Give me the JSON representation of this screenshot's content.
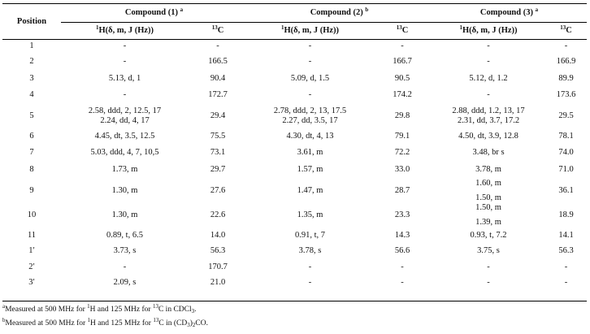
{
  "table": {
    "position_header": "Position",
    "compounds": [
      {
        "label": "Compound (1)",
        "mark": "a"
      },
      {
        "label": "Compound (2)",
        "mark": "b"
      },
      {
        "label": "Compound (3)",
        "mark": "a"
      }
    ],
    "h_header": {
      "sup": "1",
      "text": "H(δ, m, J (Hz))"
    },
    "c_header": {
      "sup": "13",
      "text": "C"
    },
    "rows": [
      {
        "pos": "1",
        "c1h": [
          "-"
        ],
        "c1c": "-",
        "c2h": [
          "-"
        ],
        "c2c": "-",
        "c3h": [
          "-"
        ],
        "c3c": "-"
      },
      {
        "pos": "2",
        "c1h": [
          "-"
        ],
        "c1c": "166.5",
        "c2h": [
          "-"
        ],
        "c2c": "166.7",
        "c3h": [
          "-"
        ],
        "c3c": "166.9"
      },
      {
        "pos": "3",
        "c1h": [
          "5.13, d, 1"
        ],
        "c1c": "90.4",
        "c2h": [
          "5.09, d, 1.5"
        ],
        "c2c": "90.5",
        "c3h": [
          "5.12, d, 1.2"
        ],
        "c3c": "89.9"
      },
      {
        "pos": "4",
        "c1h": [
          "-"
        ],
        "c1c": "172.7",
        "c2h": [
          "-"
        ],
        "c2c": "174.2",
        "c3h": [
          "-"
        ],
        "c3c": "173.6"
      },
      {
        "pos": "5",
        "c1h": [
          "2.58, ddd, 2, 12.5, 17",
          "2.24, dd, 4, 17"
        ],
        "c1c": "29.4",
        "c2h": [
          "2.78, ddd, 2, 13, 17.5",
          "2.27, dd, 3.5, 17"
        ],
        "c2c": "29.8",
        "c3h": [
          "2.88, ddd, 1.2, 13, 17",
          "2.31, dd, 3.7, 17.2"
        ],
        "c3c": "29.5"
      },
      {
        "pos": "6",
        "c1h": [
          "4.45, dt, 3.5, 12.5"
        ],
        "c1c": "75.5",
        "c2h": [
          "4.30, dt, 4, 13"
        ],
        "c2c": "79.1",
        "c3h": [
          "4.50, dt, 3.9, 12.8"
        ],
        "c3c": "78.1"
      },
      {
        "pos": "7",
        "c1h": [
          "5.03, ddd, 4, 7, 10,5"
        ],
        "c1c": "73.1",
        "c2h": [
          "3.61, m"
        ],
        "c2c": "72.2",
        "c3h": [
          "3.48, br s"
        ],
        "c3c": "74.0"
      },
      {
        "pos": "8",
        "c1h": [
          "1.73, m"
        ],
        "c1c": "29.7",
        "c2h": [
          "1.57, m"
        ],
        "c2c": "33.0",
        "c3h": [
          "3.78, m"
        ],
        "c3c": "71.0"
      },
      {
        "pos": "9",
        "c1h": [
          "1.30, m"
        ],
        "c1c": "27.6",
        "c2h": [
          "1.47, m"
        ],
        "c2c": "28.7",
        "c3h": [
          "1.60, m",
          "1.50, m"
        ],
        "c3c": "36.1"
      },
      {
        "pos": "10",
        "c1h": [
          "1.30, m"
        ],
        "c1c": "22.6",
        "c2h": [
          "1.35, m"
        ],
        "c2c": "23.3",
        "c3h": [
          "1.50, m",
          "1.39, m"
        ],
        "c3c": "18.9"
      },
      {
        "pos": "11",
        "c1h": [
          "0.89, t, 6.5"
        ],
        "c1c": "14.0",
        "c2h": [
          "0.91, t, 7"
        ],
        "c2c": "14.3",
        "c3h": [
          "0.93, t, 7.2"
        ],
        "c3c": "14.1"
      },
      {
        "pos": "1′",
        "c1h": [
          "3.73, s"
        ],
        "c1c": "56.3",
        "c2h": [
          "3.78, s"
        ],
        "c2c": "56.6",
        "c3h": [
          "3.75, s"
        ],
        "c3c": "56.3"
      },
      {
        "pos": "2′",
        "c1h": [
          "-"
        ],
        "c1c": "170.7",
        "c2h": [
          "-"
        ],
        "c2c": "-",
        "c3h": [
          "-"
        ],
        "c3c": "-"
      },
      {
        "pos": "3′",
        "c1h": [
          "2.09, s"
        ],
        "c1c": "21.0",
        "c2h": [
          "-"
        ],
        "c2c": "-",
        "c3h": [
          "-"
        ],
        "c3c": "-"
      }
    ]
  },
  "footnotes": [
    {
      "mark": "a",
      "pre": "Measured at 500 MHz for ",
      "sup1": "1",
      "mid": "H and 125 MHz for ",
      "sup2": "13",
      "post": "C in CDCl",
      "sub": "3",
      "end": "."
    },
    {
      "mark": "b",
      "pre": "Measured at 500 MHz for ",
      "sup1": "1",
      "mid": "H and 125 MHz for ",
      "sup2": "13",
      "post": "C in (CD",
      "sub": "3",
      "end": ")",
      "sub2": "2",
      "end2": "CO."
    }
  ]
}
